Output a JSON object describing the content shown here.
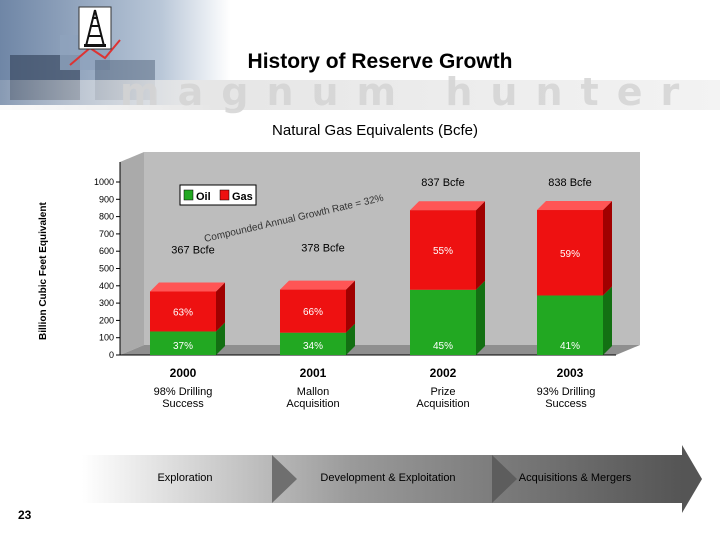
{
  "header": {
    "title": "History of Reserve Growth",
    "brand_text": "magnum hunter"
  },
  "chart_data": {
    "type": "bar",
    "stacked": true,
    "title": "Natural Gas Equivalents  (Bcfe)",
    "ylabel": "Billion Cubic Feet Equivalent",
    "ylim": [
      0,
      1000
    ],
    "yticks": [
      "0",
      "100",
      "200",
      "300",
      "400",
      "500",
      "600",
      "700",
      "800",
      "900",
      "1000"
    ],
    "categories": [
      "2000",
      "2001",
      "2002",
      "2003"
    ],
    "series": [
      {
        "name": "Oil",
        "color": "#22a822",
        "values": [
          136,
          129,
          377,
          344
        ]
      },
      {
        "name": "Gas",
        "color": "#ee1111",
        "values": [
          231,
          249,
          460,
          494
        ]
      }
    ],
    "totals": [
      "367 Bcfe",
      "378 Bcfe",
      "837 Bcfe",
      "838 Bcfe"
    ],
    "oil_pct_labels": [
      "37%",
      "34%",
      "45%",
      "41%"
    ],
    "gas_pct_labels": [
      "63%",
      "66%",
      "55%",
      "59%"
    ],
    "annotation": "Compounded Annual Growth Rate = 32%",
    "legend_position": "top-left"
  },
  "bar_notes": [
    "98% Drilling\nSuccess",
    "Mallon\nAcquisition",
    "Prize\nAcquisition",
    "93% Drilling\nSuccess"
  ],
  "phases": [
    "Exploration",
    "Development & Exploitation",
    "Acquisitions & Mergers"
  ],
  "page_number": "23"
}
